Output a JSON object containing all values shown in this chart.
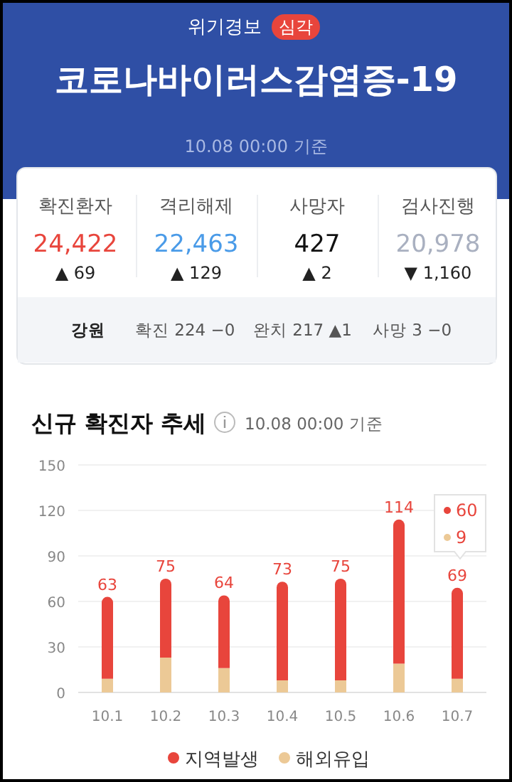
{
  "chart_data": [
    {
      "type": "other",
      "title": "코로나바이러스감염증-19",
      "subtitle": "10.08 00:00 기준",
      "annotations": [
        "위기경보",
        "심각",
        "확진환자",
        "24,422",
        "▲ 69",
        "격리해제",
        "22,463",
        "▲ 129",
        "사망자",
        "427",
        "▲ 2",
        "검사진행",
        "20,978",
        "▼ 1,160",
        "강원",
        "확진 224 −0",
        "완치 217 ▲1",
        "사망 3 −0"
      ]
    },
    {
      "type": "bar",
      "stacked": true,
      "title": "신규 확진자 추세",
      "subtitle": "10.08 00:00 기준",
      "categories": [
        "10.1",
        "10.2",
        "10.3",
        "10.4",
        "10.5",
        "10.6",
        "10.7"
      ],
      "series": [
        {
          "name": "해외유입",
          "color": "#ecc996",
          "values": [
            9,
            23,
            16,
            8,
            8,
            19,
            9
          ]
        },
        {
          "name": "지역발생",
          "color": "#e8453c",
          "values": [
            54,
            52,
            48,
            65,
            67,
            95,
            60
          ]
        }
      ],
      "totals": [
        "63",
        "75",
        "64",
        "73",
        "75",
        "114",
        "69"
      ],
      "annotations": [
        "60",
        "9"
      ],
      "ylim": [
        0,
        150
      ],
      "yticks": [
        0,
        30,
        60,
        90,
        120,
        150
      ],
      "grid": "y",
      "legend": "bottom"
    }
  ]
}
